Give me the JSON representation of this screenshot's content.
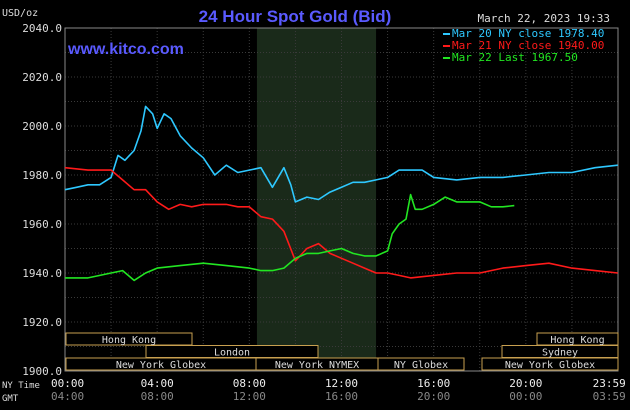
{
  "header": {
    "title": "24 Hour Spot Gold (Bid)",
    "unit": "USD/oz",
    "datetime": "March 22, 2023 19:33",
    "website": "www.kitco.com"
  },
  "axis": {
    "ny_time_label": "NY Time",
    "gmt_label": "GMT",
    "x_ticks_ny": [
      "00:00",
      "04:00",
      "08:00",
      "12:00",
      "16:00",
      "20:00",
      "23:59"
    ],
    "x_ticks_gmt": [
      "04:00",
      "08:00",
      "12:00",
      "16:00",
      "20:00",
      "00:00",
      "03:59"
    ],
    "y_ticks": [
      "2040.0",
      "2020.0",
      "2000.0",
      "1980.0",
      "1960.0",
      "1940.0",
      "1920.0",
      "1900.0"
    ]
  },
  "sessions": {
    "hong_kong_1": "Hong Kong",
    "london": "London",
    "new_york_globex_1": "New York Globex",
    "new_york_nymex": "New York NYMEX",
    "ny_globex": "NY Globex",
    "hong_kong_2": "Hong Kong",
    "sydney": "Sydney",
    "new_york_globex_2": "New York Globex"
  },
  "colors": {
    "background": "#000000",
    "grid": "#3a3a3a",
    "title": "#5a5aff",
    "mar20": "#2ec8ff",
    "mar21": "#ff1a1a",
    "mar22": "#22e622",
    "session_box": "#c8a050",
    "nymex_shade": "#1a2a1a"
  },
  "chart_data": {
    "type": "line",
    "title": "24 Hour Spot Gold (Bid)",
    "ylabel": "USD/oz",
    "ylim": [
      1900,
      2040
    ],
    "xlim_hours": [
      0,
      24
    ],
    "grid": true,
    "legend_position": "top-right",
    "series": [
      {
        "name": "Mar 20 NY close 1978.40",
        "color": "#2ec8ff",
        "points": [
          [
            0,
            1974
          ],
          [
            0.5,
            1975
          ],
          [
            1,
            1976
          ],
          [
            1.5,
            1976
          ],
          [
            2,
            1979
          ],
          [
            2.3,
            1988
          ],
          [
            2.6,
            1986
          ],
          [
            3,
            1990
          ],
          [
            3.3,
            1998
          ],
          [
            3.5,
            2008
          ],
          [
            3.8,
            2005
          ],
          [
            4,
            1999
          ],
          [
            4.3,
            2005
          ],
          [
            4.6,
            2003
          ],
          [
            5,
            1996
          ],
          [
            5.5,
            1991
          ],
          [
            6,
            1987
          ],
          [
            6.5,
            1980
          ],
          [
            7,
            1984
          ],
          [
            7.5,
            1981
          ],
          [
            8,
            1982
          ],
          [
            8.5,
            1983
          ],
          [
            9,
            1975
          ],
          [
            9.5,
            1983
          ],
          [
            9.8,
            1976
          ],
          [
            10,
            1969
          ],
          [
            10.5,
            1971
          ],
          [
            11,
            1970
          ],
          [
            11.5,
            1973
          ],
          [
            12,
            1975
          ],
          [
            12.5,
            1977
          ],
          [
            13,
            1977
          ],
          [
            13.5,
            1978
          ],
          [
            14,
            1979
          ],
          [
            14.5,
            1982
          ],
          [
            15,
            1982
          ],
          [
            15.5,
            1982
          ],
          [
            16,
            1979
          ],
          [
            17,
            1978
          ],
          [
            18,
            1979
          ],
          [
            19,
            1979
          ],
          [
            20,
            1980
          ],
          [
            21,
            1981
          ],
          [
            22,
            1981
          ],
          [
            23,
            1983
          ],
          [
            23.99,
            1984
          ]
        ]
      },
      {
        "name": "Mar 21 NY close 1940.00",
        "color": "#ff1a1a",
        "points": [
          [
            0,
            1983
          ],
          [
            1,
            1982
          ],
          [
            2,
            1982
          ],
          [
            2.5,
            1978
          ],
          [
            3,
            1974
          ],
          [
            3.5,
            1974
          ],
          [
            4,
            1969
          ],
          [
            4.5,
            1966
          ],
          [
            5,
            1968
          ],
          [
            5.5,
            1967
          ],
          [
            6,
            1968
          ],
          [
            7,
            1968
          ],
          [
            7.5,
            1967
          ],
          [
            8,
            1967
          ],
          [
            8.5,
            1963
          ],
          [
            9,
            1962
          ],
          [
            9.5,
            1957
          ],
          [
            10,
            1945
          ],
          [
            10.5,
            1950
          ],
          [
            11,
            1952
          ],
          [
            11.5,
            1948
          ],
          [
            12,
            1946
          ],
          [
            12.5,
            1944
          ],
          [
            13,
            1942
          ],
          [
            13.5,
            1940
          ],
          [
            14,
            1940
          ],
          [
            14.5,
            1939
          ],
          [
            15,
            1938
          ],
          [
            16,
            1939
          ],
          [
            17,
            1940
          ],
          [
            18,
            1940
          ],
          [
            19,
            1942
          ],
          [
            20,
            1943
          ],
          [
            21,
            1944
          ],
          [
            22,
            1942
          ],
          [
            23,
            1941
          ],
          [
            23.99,
            1940
          ]
        ]
      },
      {
        "name": "Mar 22 Last 1967.50",
        "color": "#22e622",
        "points": [
          [
            0,
            1938
          ],
          [
            1,
            1938
          ],
          [
            2,
            1940
          ],
          [
            2.5,
            1941
          ],
          [
            3,
            1937
          ],
          [
            3.5,
            1940
          ],
          [
            4,
            1942
          ],
          [
            5,
            1943
          ],
          [
            6,
            1944
          ],
          [
            7,
            1943
          ],
          [
            8,
            1942
          ],
          [
            8.5,
            1941
          ],
          [
            9,
            1941
          ],
          [
            9.5,
            1942
          ],
          [
            10,
            1946
          ],
          [
            10.5,
            1948
          ],
          [
            11,
            1948
          ],
          [
            11.5,
            1949
          ],
          [
            12,
            1950
          ],
          [
            12.5,
            1948
          ],
          [
            13,
            1947
          ],
          [
            13.5,
            1947
          ],
          [
            14,
            1949
          ],
          [
            14.2,
            1956
          ],
          [
            14.5,
            1960
          ],
          [
            14.8,
            1962
          ],
          [
            15,
            1972
          ],
          [
            15.2,
            1966
          ],
          [
            15.5,
            1966
          ],
          [
            16,
            1968
          ],
          [
            16.5,
            1971
          ],
          [
            17,
            1969
          ],
          [
            17.5,
            1969
          ],
          [
            18,
            1969
          ],
          [
            18.5,
            1967
          ],
          [
            19,
            1967
          ],
          [
            19.5,
            1967.5
          ]
        ]
      }
    ]
  }
}
